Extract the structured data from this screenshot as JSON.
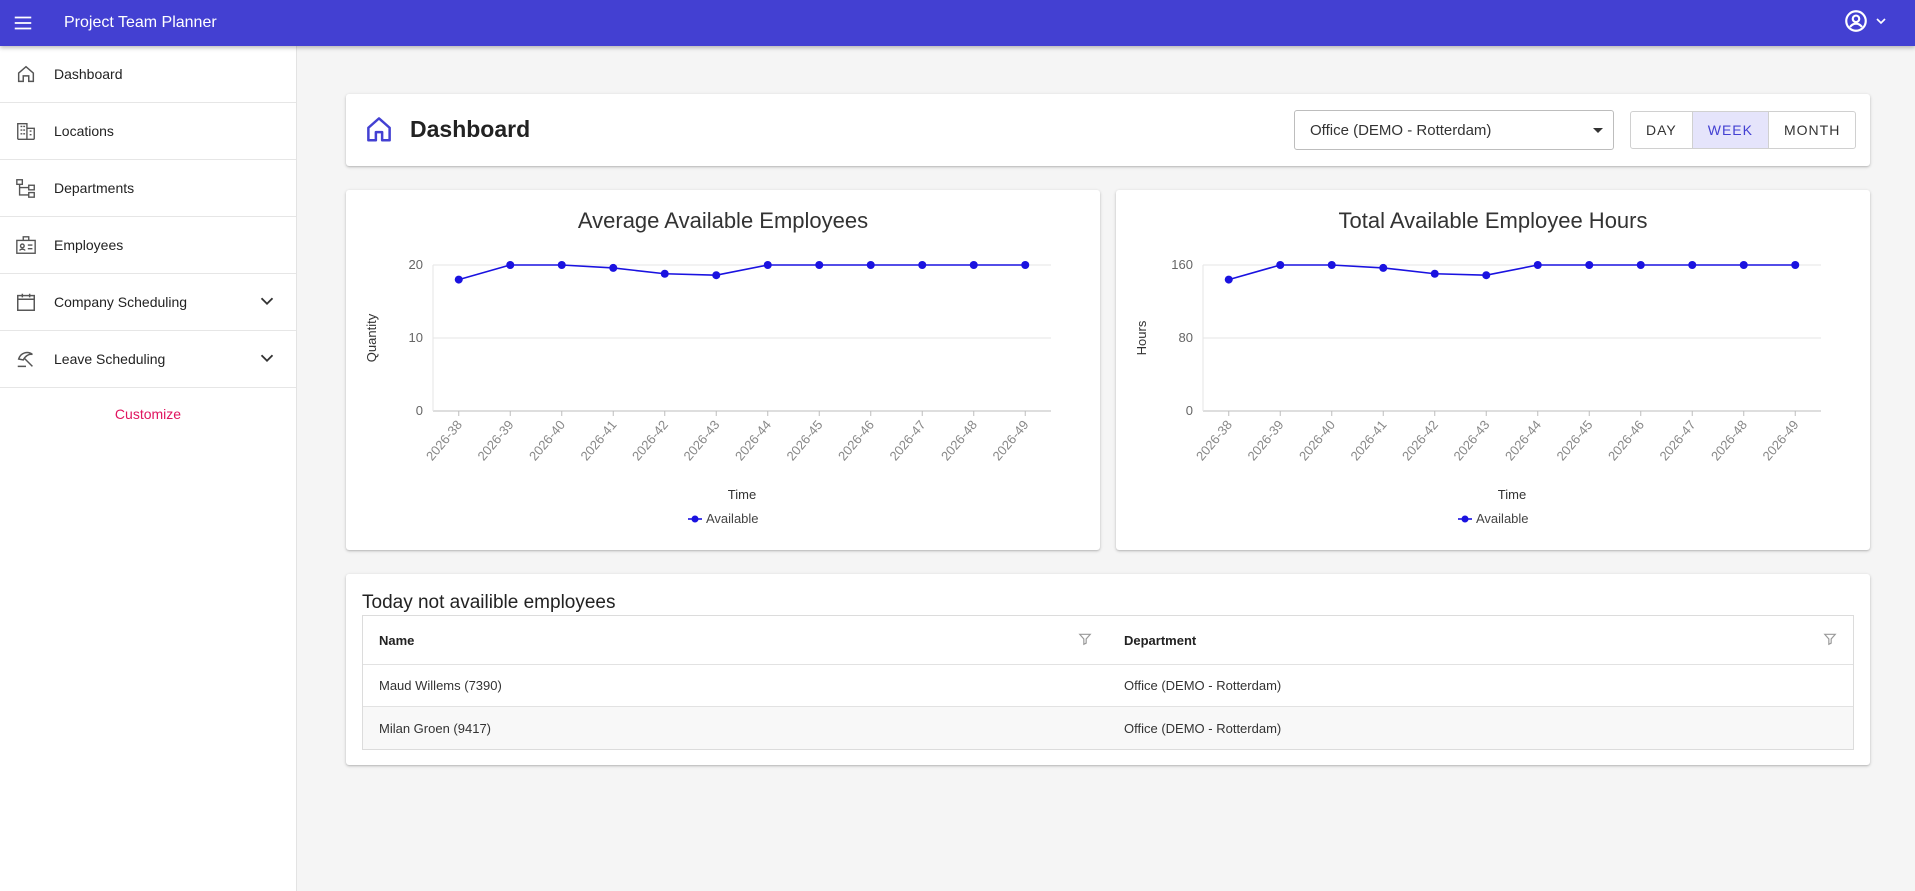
{
  "app": {
    "title": "Project Team Planner"
  },
  "sidebar": {
    "items": [
      {
        "label": "Dashboard",
        "icon": "home-icon"
      },
      {
        "label": "Locations",
        "icon": "building-icon"
      },
      {
        "label": "Departments",
        "icon": "hierarchy-icon"
      },
      {
        "label": "Employees",
        "icon": "badge-icon"
      },
      {
        "label": "Company Scheduling",
        "icon": "calendar-icon",
        "expandable": true
      },
      {
        "label": "Leave Scheduling",
        "icon": "beach-umbrella-icon",
        "expandable": true
      }
    ],
    "customize_label": "Customize"
  },
  "header": {
    "title": "Dashboard",
    "location_select": "Office (DEMO - Rotterdam)",
    "periods": [
      "DAY",
      "WEEK",
      "MONTH"
    ],
    "active_period": "WEEK"
  },
  "colors": {
    "accent": "#4340d2",
    "series": "#1a12e0",
    "customize": "#e0145f"
  },
  "chart_data": [
    {
      "type": "line",
      "title": "Average Available Employees",
      "xlabel": "Time",
      "ylabel": "Quantity",
      "ylim": [
        0,
        20
      ],
      "yticks": [
        0,
        10,
        20
      ],
      "categories": [
        "2026-38",
        "2026-39",
        "2026-40",
        "2026-41",
        "2026-42",
        "2026-43",
        "2026-44",
        "2026-45",
        "2026-46",
        "2026-47",
        "2026-48",
        "2026-49"
      ],
      "series": [
        {
          "name": "Available",
          "values": [
            18,
            20,
            20,
            19.6,
            18.8,
            18.6,
            20,
            20,
            20,
            20,
            20,
            20
          ]
        }
      ],
      "legend": "bottom",
      "grid": true
    },
    {
      "type": "line",
      "title": "Total Available Employee Hours",
      "xlabel": "Time",
      "ylabel": "Hours",
      "ylim": [
        0,
        160
      ],
      "yticks": [
        0,
        80,
        160
      ],
      "categories": [
        "2026-38",
        "2026-39",
        "2026-40",
        "2026-41",
        "2026-42",
        "2026-43",
        "2026-44",
        "2026-45",
        "2026-46",
        "2026-47",
        "2026-48",
        "2026-49"
      ],
      "series": [
        {
          "name": "Available",
          "values": [
            144,
            160,
            160,
            156.8,
            150.4,
            148.8,
            160,
            160,
            160,
            160,
            160,
            160
          ]
        }
      ],
      "legend": "bottom",
      "grid": true
    }
  ],
  "unavailable": {
    "title": "Today not availible employees",
    "columns": [
      "Name",
      "Department"
    ],
    "rows": [
      [
        "Maud Willems (7390)",
        "Office (DEMO - Rotterdam)"
      ],
      [
        "Milan Groen (9417)",
        "Office (DEMO - Rotterdam)"
      ]
    ]
  }
}
